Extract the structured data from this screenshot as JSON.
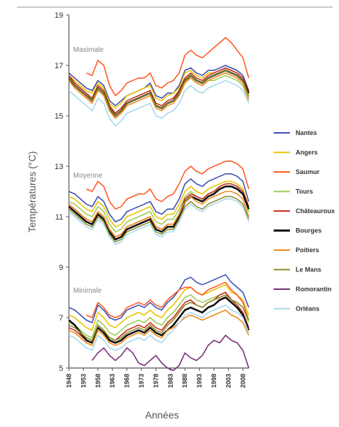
{
  "chart_data": {
    "type": "line",
    "ylabel": "Températures (°C)",
    "xlabel": "Années",
    "ylim": [
      5,
      19
    ],
    "yticks": [
      "5",
      "7",
      "9",
      "11",
      "13",
      "15",
      "17",
      "19"
    ],
    "xlim": [
      1948,
      2010
    ],
    "xticks": [
      "1948",
      "1953",
      "1958",
      "1963",
      "1968",
      "1973",
      "1978",
      "1983",
      "1988",
      "1993",
      "1998",
      "2003",
      "2008"
    ],
    "grid": false,
    "legend_position": "right",
    "groups": [
      {
        "label": "Maximale"
      },
      {
        "label": "Moyenne"
      },
      {
        "label": "Minimale"
      }
    ],
    "x": [
      1948,
      1950,
      1952,
      1954,
      1956,
      1958,
      1960,
      1962,
      1964,
      1966,
      1968,
      1970,
      1972,
      1974,
      1976,
      1978,
      1980,
      1982,
      1984,
      1986,
      1988,
      1990,
      1992,
      1994,
      1996,
      1998,
      2000,
      2002,
      2004,
      2006,
      2008,
      2010
    ],
    "series": [
      {
        "name": "Nantes",
        "color": "#3d4fb3",
        "max": [
          16.7,
          16.5,
          16.3,
          16.1,
          16.0,
          16.4,
          16.2,
          15.6,
          15.4,
          15.6,
          15.8,
          15.9,
          16.0,
          16.1,
          16.3,
          15.8,
          15.7,
          15.9,
          15.9,
          16.2,
          16.8,
          16.9,
          16.7,
          16.6,
          16.8,
          16.8,
          16.9,
          17.0,
          16.9,
          16.8,
          16.6,
          16.0
        ],
        "avg": [
          12.0,
          11.9,
          11.7,
          11.5,
          11.4,
          11.8,
          11.6,
          11.1,
          10.8,
          10.9,
          11.2,
          11.3,
          11.4,
          11.5,
          11.6,
          11.2,
          11.1,
          11.3,
          11.3,
          11.7,
          12.3,
          12.5,
          12.3,
          12.2,
          12.4,
          12.5,
          12.6,
          12.7,
          12.7,
          12.6,
          12.4,
          11.6
        ],
        "min": [
          7.4,
          7.3,
          7.1,
          6.9,
          6.8,
          7.5,
          7.3,
          7.0,
          6.9,
          7.0,
          7.3,
          7.4,
          7.5,
          7.4,
          7.6,
          7.4,
          7.3,
          7.6,
          7.8,
          8.1,
          8.5,
          8.6,
          8.4,
          8.3,
          8.4,
          8.5,
          8.6,
          8.7,
          8.4,
          8.2,
          8.0,
          7.4
        ]
      },
      {
        "name": "Angers",
        "color": "#e8c400",
        "max": [
          16.6,
          16.4,
          16.2,
          16.0,
          15.9,
          16.3,
          16.1,
          15.5,
          15.3,
          15.5,
          15.8,
          15.9,
          16.0,
          16.1,
          16.2,
          15.7,
          15.6,
          15.8,
          15.9,
          16.1,
          16.7,
          16.8,
          16.6,
          16.5,
          16.7,
          16.7,
          16.8,
          16.9,
          16.8,
          16.7,
          16.5,
          15.9
        ],
        "avg": [
          11.8,
          11.7,
          11.5,
          11.3,
          11.2,
          11.6,
          11.4,
          10.9,
          10.6,
          10.7,
          11.0,
          11.1,
          11.2,
          11.3,
          11.4,
          11.0,
          10.9,
          11.1,
          11.1,
          11.5,
          12.0,
          12.2,
          12.0,
          11.9,
          12.1,
          12.2,
          12.3,
          12.4,
          12.4,
          12.3,
          12.1,
          11.4
        ],
        "min": [
          7.1,
          7.0,
          6.8,
          6.6,
          6.5,
          7.2,
          7.0,
          6.7,
          6.6,
          6.8,
          7.0,
          7.1,
          7.2,
          7.1,
          7.3,
          7.1,
          7.0,
          7.3,
          7.5,
          7.8,
          8.1,
          8.2,
          8.0,
          7.9,
          8.0,
          8.1,
          8.2,
          8.3,
          8.0,
          7.9,
          7.7,
          7.1
        ]
      },
      {
        "name": "Saumur",
        "color": "#ff5a28",
        "max": [
          null,
          null,
          null,
          16.7,
          16.6,
          17.2,
          17.0,
          16.2,
          15.8,
          16.0,
          16.3,
          16.4,
          16.5,
          16.5,
          16.7,
          16.2,
          16.1,
          16.3,
          16.4,
          16.7,
          17.4,
          17.6,
          17.4,
          17.3,
          17.5,
          17.7,
          17.9,
          18.1,
          17.9,
          17.6,
          17.3,
          16.5
        ],
        "avg": [
          null,
          null,
          null,
          12.1,
          12.0,
          12.4,
          12.2,
          11.6,
          11.3,
          11.4,
          11.7,
          11.8,
          11.9,
          11.9,
          12.1,
          11.7,
          11.6,
          11.8,
          11.9,
          12.3,
          12.8,
          13.0,
          12.8,
          12.7,
          12.9,
          13.0,
          13.1,
          13.2,
          13.2,
          13.1,
          12.9,
          12.1
        ],
        "min": [
          null,
          null,
          null,
          7.1,
          7.0,
          7.6,
          7.4,
          7.1,
          7.0,
          7.1,
          7.4,
          7.5,
          7.6,
          7.5,
          7.7,
          7.5,
          7.4,
          7.7,
          7.9,
          8.1,
          8.2,
          8.2,
          8.0,
          7.9,
          8.1,
          8.2,
          8.3,
          8.4,
          8.1,
          7.9,
          7.6,
          6.9
        ]
      },
      {
        "name": "Tours",
        "color": "#9ccc55",
        "max": [
          16.4,
          16.2,
          16.0,
          15.8,
          15.7,
          16.1,
          15.9,
          15.3,
          15.1,
          15.3,
          15.5,
          15.6,
          15.7,
          15.8,
          15.9,
          15.4,
          15.3,
          15.5,
          15.6,
          15.9,
          16.4,
          16.5,
          16.3,
          16.2,
          16.4,
          16.4,
          16.5,
          16.6,
          16.5,
          16.4,
          16.2,
          15.6
        ],
        "avg": [
          11.6,
          11.5,
          11.3,
          11.1,
          11.0,
          11.4,
          11.2,
          10.7,
          10.4,
          10.5,
          10.8,
          10.9,
          11.0,
          11.1,
          11.2,
          10.8,
          10.7,
          10.9,
          10.9,
          11.3,
          11.8,
          12.0,
          11.8,
          11.7,
          11.9,
          12.0,
          12.1,
          12.2,
          12.2,
          12.1,
          11.9,
          11.2
        ],
        "min": [
          6.8,
          6.7,
          6.5,
          6.3,
          6.2,
          6.9,
          6.7,
          6.4,
          6.3,
          6.5,
          6.7,
          6.8,
          6.9,
          6.8,
          7.0,
          6.8,
          6.7,
          7.0,
          7.2,
          7.5,
          7.8,
          7.9,
          7.7,
          7.6,
          7.7,
          7.8,
          7.9,
          8.0,
          7.7,
          7.6,
          7.4,
          6.8
        ]
      },
      {
        "name": "Châteauroux",
        "color": "#cc2b1d",
        "max": [
          16.6,
          16.3,
          16.1,
          15.9,
          15.7,
          16.2,
          16.0,
          15.4,
          15.1,
          15.3,
          15.6,
          15.7,
          15.8,
          15.9,
          16.0,
          15.5,
          15.4,
          15.6,
          15.7,
          16.0,
          16.5,
          16.7,
          16.5,
          16.4,
          16.6,
          16.7,
          16.8,
          16.9,
          16.8,
          16.7,
          16.5,
          16.0
        ],
        "avg": [
          11.5,
          11.3,
          11.1,
          10.9,
          10.8,
          11.2,
          11.0,
          10.5,
          10.2,
          10.3,
          10.6,
          10.7,
          10.8,
          10.9,
          11.0,
          10.6,
          10.5,
          10.7,
          10.7,
          11.1,
          11.7,
          11.9,
          11.8,
          11.7,
          11.9,
          12.0,
          12.2,
          12.3,
          12.3,
          12.2,
          12.0,
          11.4
        ],
        "min": [
          6.6,
          6.5,
          6.3,
          6.1,
          6.0,
          6.7,
          6.5,
          6.2,
          6.1,
          6.3,
          6.5,
          6.6,
          6.7,
          6.6,
          6.8,
          6.6,
          6.5,
          6.8,
          7.0,
          7.3,
          7.6,
          7.7,
          7.5,
          7.4,
          7.6,
          7.7,
          7.9,
          8.0,
          7.7,
          7.5,
          7.2,
          6.6
        ]
      },
      {
        "name": "Bourges",
        "color": "#111111",
        "max": [
          16.5,
          16.2,
          16.0,
          15.8,
          15.6,
          16.1,
          15.9,
          15.3,
          15.0,
          15.2,
          15.5,
          15.6,
          15.7,
          15.8,
          15.9,
          15.4,
          15.3,
          15.5,
          15.6,
          15.9,
          16.4,
          16.6,
          16.4,
          16.3,
          16.5,
          16.6,
          16.7,
          16.8,
          16.7,
          16.6,
          16.4,
          15.9
        ],
        "avg": [
          11.4,
          11.2,
          11.0,
          10.8,
          10.7,
          11.1,
          10.9,
          10.4,
          10.1,
          10.2,
          10.5,
          10.6,
          10.7,
          10.8,
          10.9,
          10.5,
          10.4,
          10.6,
          10.6,
          11.0,
          11.6,
          11.8,
          11.7,
          11.6,
          11.8,
          11.9,
          12.1,
          12.2,
          12.2,
          12.1,
          11.9,
          11.3
        ],
        "min": [
          6.9,
          6.7,
          6.4,
          6.1,
          6.0,
          6.6,
          6.4,
          6.1,
          6.0,
          6.1,
          6.3,
          6.4,
          6.5,
          6.4,
          6.6,
          6.4,
          6.3,
          6.5,
          6.7,
          7.0,
          7.3,
          7.4,
          7.3,
          7.2,
          7.4,
          7.5,
          7.7,
          7.8,
          7.6,
          7.4,
          7.1,
          6.5
        ]
      },
      {
        "name": "Poitiers",
        "color": "#f08a1c",
        "max": [
          16.4,
          16.1,
          15.9,
          15.7,
          15.5,
          16.0,
          15.8,
          15.2,
          14.9,
          15.1,
          15.4,
          15.5,
          15.6,
          15.7,
          15.8,
          15.3,
          15.2,
          15.4,
          15.5,
          15.8,
          16.3,
          16.5,
          16.3,
          16.2,
          16.4,
          16.5,
          16.6,
          16.7,
          16.6,
          16.5,
          16.3,
          15.7
        ],
        "avg": [
          11.5,
          11.3,
          11.1,
          10.9,
          10.8,
          11.2,
          11.0,
          10.5,
          10.2,
          10.3,
          10.6,
          10.7,
          10.8,
          10.9,
          11.0,
          10.6,
          10.5,
          10.7,
          10.7,
          11.1,
          11.6,
          11.8,
          11.6,
          11.5,
          11.7,
          11.8,
          11.9,
          12.0,
          12.0,
          11.9,
          11.7,
          11.0
        ],
        "min": [
          6.5,
          6.4,
          6.2,
          6.0,
          5.9,
          6.5,
          6.3,
          6.0,
          5.9,
          6.0,
          6.2,
          6.3,
          6.4,
          6.3,
          6.5,
          6.3,
          6.2,
          6.5,
          6.6,
          6.8,
          7.0,
          7.1,
          7.0,
          6.9,
          7.0,
          7.1,
          7.2,
          7.3,
          7.1,
          7.0,
          6.8,
          6.3
        ]
      },
      {
        "name": "Le Mans",
        "color": "#8a8a2a",
        "max": [
          16.5,
          16.2,
          16.0,
          15.8,
          15.6,
          16.1,
          15.9,
          15.3,
          15.0,
          15.2,
          15.5,
          15.6,
          15.7,
          15.8,
          15.9,
          15.4,
          15.3,
          15.5,
          15.6,
          15.9,
          16.4,
          16.6,
          16.4,
          16.3,
          16.5,
          16.6,
          16.7,
          16.8,
          16.7,
          16.6,
          16.4,
          15.8
        ],
        "avg": [
          11.3,
          11.1,
          10.9,
          10.7,
          10.6,
          11.0,
          10.8,
          10.3,
          10.0,
          10.1,
          10.4,
          10.5,
          10.6,
          10.7,
          10.8,
          10.4,
          10.3,
          10.5,
          10.5,
          10.9,
          11.4,
          11.6,
          11.4,
          11.3,
          11.5,
          11.6,
          11.7,
          11.8,
          11.8,
          11.7,
          11.5,
          10.9
        ],
        "min": [
          6.7,
          6.6,
          6.4,
          6.2,
          6.1,
          6.7,
          6.5,
          6.2,
          6.1,
          6.2,
          6.4,
          6.5,
          6.6,
          6.5,
          6.7,
          6.5,
          6.4,
          6.7,
          6.9,
          7.2,
          7.5,
          7.6,
          7.5,
          7.4,
          7.6,
          7.7,
          7.8,
          7.9,
          7.7,
          7.6,
          7.4,
          6.9
        ]
      },
      {
        "name": "Romorantin",
        "color": "#7a2f78",
        "max": [],
        "avg": [],
        "min": [
          null,
          null,
          null,
          null,
          5.3,
          5.6,
          5.8,
          5.5,
          5.3,
          5.5,
          5.8,
          5.6,
          5.2,
          5.1,
          5.3,
          5.5,
          5.2,
          5.0,
          4.9,
          5.1,
          5.6,
          5.4,
          5.3,
          5.5,
          5.9,
          6.1,
          6.0,
          6.3,
          6.1,
          6.0,
          5.7,
          5.0
        ]
      },
      {
        "name": "Orléans",
        "color": "#a8d8ee",
        "max": [
          16.0,
          15.8,
          15.6,
          15.4,
          15.2,
          15.7,
          15.5,
          14.9,
          14.6,
          14.8,
          15.1,
          15.2,
          15.3,
          15.4,
          15.5,
          15.0,
          14.9,
          15.1,
          15.2,
          15.5,
          16.0,
          16.2,
          16.0,
          15.9,
          16.1,
          16.2,
          16.3,
          16.4,
          16.3,
          16.2,
          16.0,
          15.5
        ],
        "avg": [
          11.2,
          11.0,
          10.8,
          10.6,
          10.5,
          10.9,
          10.7,
          10.2,
          9.9,
          10.0,
          10.3,
          10.4,
          10.5,
          10.6,
          10.7,
          10.3,
          10.2,
          10.4,
          10.4,
          10.8,
          11.3,
          11.5,
          11.3,
          11.2,
          11.4,
          11.5,
          11.6,
          11.7,
          11.7,
          11.6,
          11.4,
          10.8
        ],
        "min": [
          6.3,
          6.2,
          6.0,
          5.8,
          5.7,
          6.3,
          6.1,
          5.8,
          5.7,
          5.8,
          6.0,
          6.1,
          6.2,
          6.1,
          6.3,
          6.1,
          6.0,
          6.3,
          6.5,
          6.8,
          7.1,
          7.2,
          7.1,
          7.0,
          7.2,
          7.3,
          7.4,
          7.5,
          7.3,
          7.2,
          7.0,
          6.4
        ]
      }
    ]
  }
}
